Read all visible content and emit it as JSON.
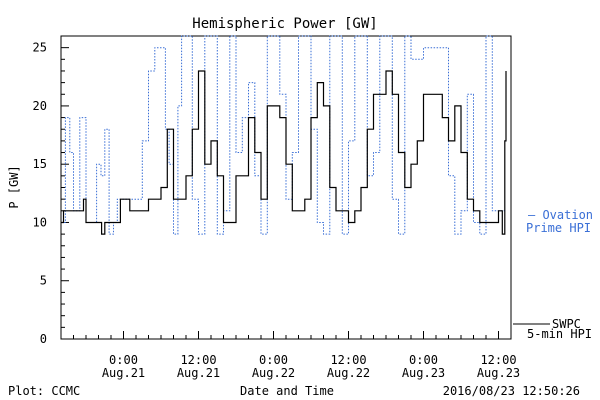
{
  "chart_data": {
    "type": "line",
    "title": "Hemispheric Power [GW]",
    "ylabel": "P [GW]",
    "xlabel": "Date and Time",
    "ylim": [
      0,
      26
    ],
    "xlim_hours_relative": [
      -10,
      62
    ],
    "y_ticks": [
      0,
      5,
      10,
      15,
      20,
      25
    ],
    "x_ticks": [
      {
        "hour": 0,
        "time": "0:00",
        "date": "Aug.21"
      },
      {
        "hour": 12,
        "time": "12:00",
        "date": "Aug.21"
      },
      {
        "hour": 24,
        "time": "0:00",
        "date": "Aug.22"
      },
      {
        "hour": 36,
        "time": "12:00",
        "date": "Aug.22"
      },
      {
        "hour": 48,
        "time": "0:00",
        "date": "Aug.23"
      },
      {
        "hour": 60,
        "time": "12:00",
        "date": "Aug.23"
      }
    ],
    "series": [
      {
        "name": "SWPC 5-min HPI",
        "color": "#000000",
        "style": "solid",
        "x": [
          -10,
          -9.6,
          -7,
          -6.4,
          -6,
          -5.2,
          -3.5,
          -3,
          -1,
          -0.5,
          1,
          2,
          3,
          4,
          5,
          6,
          7,
          8,
          9,
          10,
          11,
          12,
          13,
          14,
          15,
          16,
          17,
          18,
          19,
          20,
          21,
          22,
          23,
          24,
          25,
          26,
          27,
          28,
          29,
          30,
          31,
          32,
          33,
          34,
          35,
          36,
          37,
          38,
          39,
          40,
          41,
          42,
          43,
          44,
          45,
          46,
          47,
          48,
          49,
          50,
          51,
          52,
          53,
          54,
          55,
          56,
          57,
          58,
          59,
          60,
          60.6,
          61,
          61.2
        ],
        "y": [
          10,
          11,
          11,
          12,
          10,
          10,
          9,
          10,
          10,
          12,
          11,
          11,
          11,
          12,
          12,
          13,
          18,
          12,
          12,
          14,
          18,
          23,
          15,
          17,
          14,
          10,
          10,
          14,
          14,
          19,
          16,
          12,
          20,
          20,
          19,
          15,
          11,
          11,
          12,
          19,
          22,
          20,
          13,
          11,
          11,
          10,
          11,
          13,
          18,
          21,
          21,
          23,
          21,
          16,
          13,
          15,
          17,
          21,
          21,
          21,
          19,
          17,
          20,
          16,
          12,
          11,
          10,
          10,
          10,
          11,
          9,
          17,
          23
        ]
      },
      {
        "name": "Ovation Prime HPI",
        "color": "#3a6fd6",
        "style": "dotted",
        "x": [
          -10,
          -9.3,
          -8.6,
          -8,
          -7,
          -6,
          -5,
          -4.3,
          -3.6,
          -3,
          -2.3,
          -1.6,
          -1,
          0,
          1,
          2,
          3,
          4,
          5,
          6,
          6.7,
          7.3,
          8,
          8.7,
          9.3,
          10,
          11,
          12,
          13,
          14,
          15,
          16,
          17,
          18,
          19,
          20,
          21,
          22,
          23,
          24,
          25,
          26,
          27,
          28,
          29,
          30,
          31,
          32,
          33,
          34,
          35,
          36,
          37,
          38,
          39,
          40,
          41,
          42,
          43,
          44,
          45,
          46,
          47,
          48,
          49,
          50,
          51,
          52,
          53,
          54,
          55,
          56,
          57,
          58,
          59,
          60,
          61
        ],
        "y": [
          10,
          19,
          16,
          11,
          19,
          10,
          10,
          15,
          14,
          18,
          9,
          10,
          12,
          12,
          12,
          12,
          17,
          23,
          25,
          25,
          18,
          15,
          9,
          20,
          26,
          26,
          12,
          9,
          26,
          26,
          9,
          11,
          26,
          16,
          19,
          22,
          14,
          9,
          26,
          26,
          21,
          12,
          16,
          26,
          26,
          18,
          10,
          9,
          26,
          26,
          9,
          17,
          26,
          26,
          14,
          16,
          26,
          26,
          12,
          9,
          26,
          24,
          24,
          25,
          25,
          25,
          25,
          14,
          9,
          11,
          21,
          10,
          9,
          26,
          11,
          11,
          11
        ]
      }
    ],
    "legend": {
      "placement": "right"
    }
  },
  "legend_right": {
    "ovation_line1": "— Ovation",
    "ovation_line2": "Prime HPI",
    "swpc_line1": "SWPC",
    "swpc_line2": "5-min HPI"
  },
  "footer": {
    "plot_credit": "Plot: CCMC",
    "timestamp": "2016/08/23 12:50:26"
  },
  "colors": {
    "observed": "#000000",
    "model": "#3a6fd6"
  }
}
